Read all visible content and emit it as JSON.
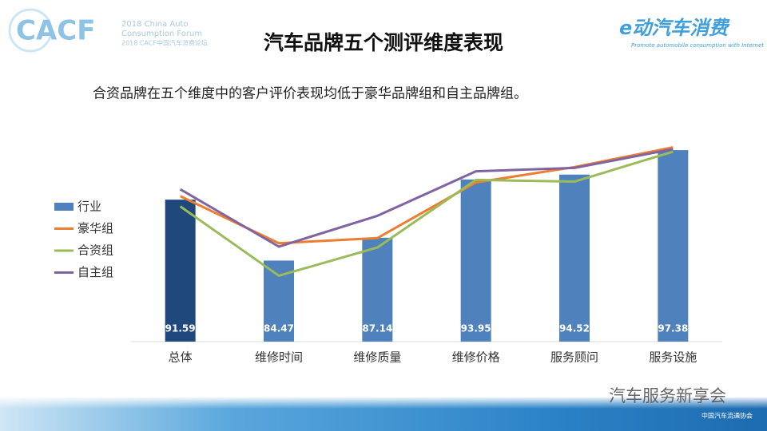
{
  "header": {
    "logo": "CACF",
    "forum_en_1": "2018 China Auto",
    "forum_en_2": "Consumption Forum",
    "forum_cn": "2018 CACF中国汽车消费论坛",
    "partner_logo": "e动汽车消费",
    "partner_tagline": "Promote automobile consumption with Internet"
  },
  "footer": {
    "watermark": "汽车服务新享会",
    "association": "中国汽车流通协会"
  },
  "chart_data": {
    "type": "bar",
    "title": "汽车品牌五个测评维度表现",
    "subtitle": "合资品牌在五个维度中的客户评价表现均低于豪华品牌组和自主品牌组。",
    "categories": [
      "总体",
      "维修时间",
      "维修质量",
      "维修价格",
      "服务顾问",
      "服务设施"
    ],
    "ylim": [
      75,
      100
    ],
    "series": [
      {
        "name": "行业",
        "type": "bar",
        "color": "#4f81bd",
        "colors": [
          "#1f497d",
          "#4f81bd",
          "#4f81bd",
          "#4f81bd",
          "#4f81bd",
          "#4f81bd"
        ],
        "values": [
          91.59,
          84.47,
          87.14,
          93.95,
          94.52,
          97.38
        ]
      },
      {
        "name": "豪华组",
        "type": "line",
        "color": "#ed7d31",
        "values": [
          92.0,
          86.5,
          87.1,
          93.6,
          95.4,
          97.7
        ]
      },
      {
        "name": "合资组",
        "type": "line",
        "color": "#9bbb59",
        "values": [
          90.8,
          82.7,
          86.0,
          93.9,
          93.7,
          97.2
        ]
      },
      {
        "name": "自主组",
        "type": "line",
        "color": "#8064a2",
        "values": [
          92.8,
          86.1,
          89.7,
          94.9,
          95.3,
          97.5
        ]
      }
    ]
  }
}
